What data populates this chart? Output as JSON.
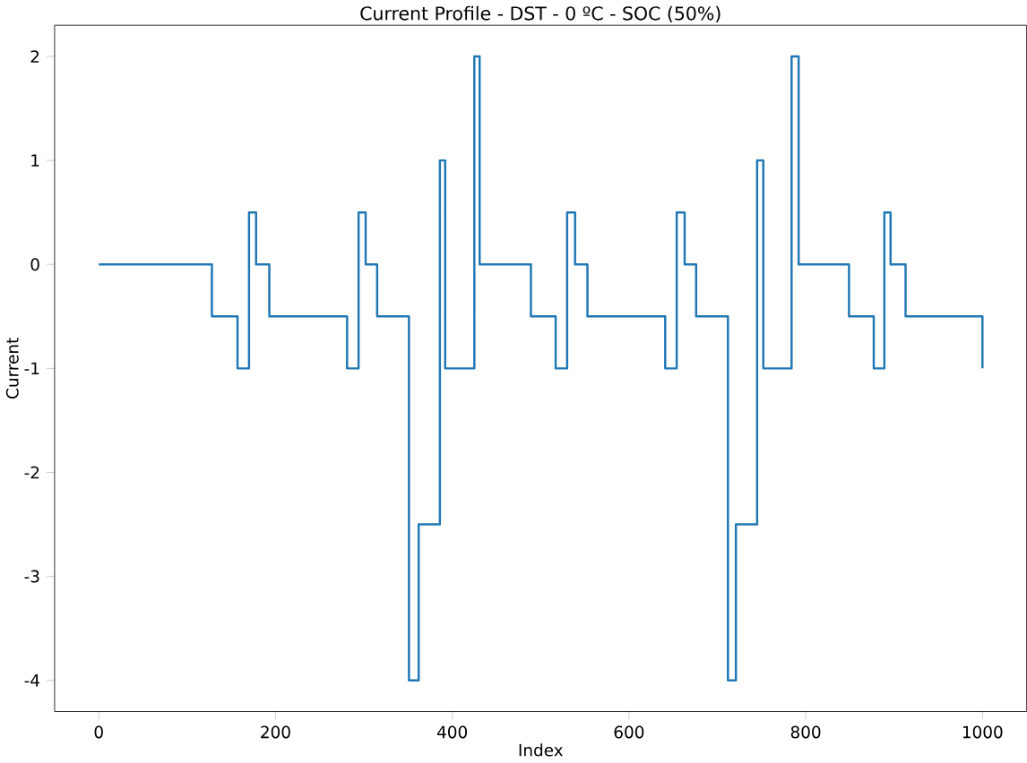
{
  "chart_data": {
    "type": "step",
    "title": "Current Profile - DST - 0 ºC - SOC (50%)",
    "xlabel": "Index",
    "ylabel": "Current",
    "x": [
      0,
      128,
      157,
      170,
      178,
      193,
      281,
      294,
      302,
      315,
      351,
      362,
      386,
      392,
      425,
      431,
      489,
      517,
      530,
      539,
      553,
      641,
      654,
      663,
      676,
      712,
      721,
      745,
      752,
      784,
      792,
      849,
      877,
      889,
      896,
      913,
      1000
    ],
    "series": [
      {
        "color": "#1f77b4",
        "values": [
          0,
          -0.5,
          -1,
          0.5,
          0,
          -0.5,
          -1,
          0.5,
          0,
          -0.5,
          -4,
          -2.5,
          1,
          -1,
          2,
          0,
          -0.5,
          -1,
          0.5,
          0,
          -0.5,
          -1,
          0.5,
          0,
          -0.5,
          -4,
          -2.5,
          1,
          -1,
          2,
          0,
          -0.5,
          -1,
          0.5,
          0,
          -0.5,
          -1
        ]
      }
    ],
    "xlim": [
      -50,
      1050
    ],
    "ylim": [
      -4.3,
      2.3
    ],
    "xticks": [
      0,
      200,
      400,
      600,
      800,
      1000
    ],
    "yticks": [
      -4,
      -3,
      -2,
      -1,
      0,
      1,
      2
    ]
  }
}
